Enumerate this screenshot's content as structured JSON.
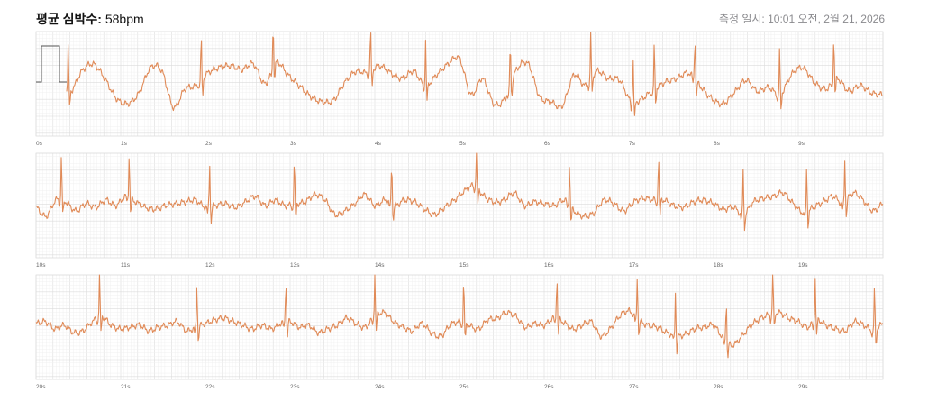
{
  "header": {
    "avg_label": "평균 심박수:",
    "avg_value": "58bpm",
    "measured_label": "측정 일시:",
    "measured_value": "10:01 오전, 2월 21, 2026"
  },
  "chart_data": [
    {
      "type": "line",
      "title": "",
      "series": [
        {
          "values": [
            0.35,
            0.1,
            0.2,
            -0.25,
            0.3,
            0.5,
            0.1,
            -0.45,
            -0.6,
            -0.3,
            0.4,
            0.3,
            -0.7,
            -0.2,
            -0.1,
            0.25,
            0.4,
            0.45,
            0.35,
            0.5,
            -0.05,
            0.55,
            0.2,
            -0.1,
            -0.4,
            -0.55,
            -0.5,
            0.0,
            0.3,
            0.25,
            0.45,
            0.25,
            0.1,
            0.3,
            -0.1,
            0.2,
            0.5,
            0.65,
            -0.35,
            0.1,
            -0.6,
            -0.45,
            0.35,
            0.5,
            -0.4,
            -0.55,
            -0.65,
            0.2,
            -0.1,
            0.3,
            0.1,
            0.05,
            -0.55,
            -0.45,
            -0.2,
            0.0,
            0.1,
            0.25,
            -0.1,
            -0.45,
            -0.6,
            -0.3,
            0.05,
            -0.25,
            -0.15,
            -0.35,
            0.2,
            0.4,
            0.0,
            -0.2,
            0.1,
            -0.25,
            -0.1,
            -0.3,
            -0.35
          ]
        }
      ],
      "x_ticks": [
        "0s",
        "1s",
        "2s",
        "3s",
        "4s",
        "5s",
        "6s",
        "7s",
        "8s",
        "9s"
      ],
      "beats": [
        0.38,
        1.95,
        2.8,
        3.95,
        4.6,
        5.6,
        6.55,
        7.05,
        7.3,
        7.78,
        8.78,
        9.42
      ],
      "calibration_pulse": true
    },
    {
      "type": "line",
      "title": "",
      "series": [
        {
          "values": [
            -0.1,
            -0.35,
            0.1,
            0.05,
            -0.2,
            0.0,
            -0.1,
            0.1,
            -0.05,
            0.2,
            0.05,
            -0.1,
            -0.15,
            -0.05,
            0.0,
            0.05,
            0.1,
            -0.1,
            -0.05,
            0.0,
            -0.1,
            0.05,
            0.2,
            -0.05,
            0.1,
            -0.05,
            0.0,
            0.05,
            0.25,
            0.1,
            -0.3,
            -0.2,
            0.0,
            0.25,
            -0.05,
            0.1,
            -0.05,
            0.1,
            0.05,
            -0.15,
            -0.3,
            -0.1,
            0.1,
            0.35,
            0.5,
            0.2,
            0.05,
            0.1,
            0.3,
            -0.05,
            0.05,
            0.0,
            -0.05,
            0.1,
            -0.2,
            -0.35,
            -0.25,
            0.1,
            0.0,
            -0.2,
            0.05,
            0.15,
            0.1,
            0.1,
            -0.05,
            -0.1,
            0.05,
            0.1,
            0.0,
            -0.15,
            -0.1,
            -0.3,
            0.05,
            0.15,
            0.2,
            0.3,
            0.0,
            -0.25,
            -0.1,
            0.05,
            0.2,
            0.0,
            0.3,
            0.1,
            -0.2,
            0.0
          ]
        }
      ],
      "x_ticks": [
        "10s",
        "11s",
        "12s",
        "13s",
        "14s",
        "15s",
        "16s",
        "17s",
        "18s",
        "19s"
      ],
      "beats": [
        10.3,
        11.1,
        12.05,
        13.05,
        14.2,
        15.2,
        16.3,
        17.35,
        18.35,
        19.1,
        19.55
      ]
    },
    {
      "type": "line",
      "title": "",
      "series": [
        {
          "values": [
            0.05,
            0.1,
            -0.1,
            0.0,
            -0.2,
            -0.15,
            0.1,
            0.25,
            0.0,
            -0.1,
            -0.05,
            0.0,
            -0.15,
            -0.05,
            0.0,
            0.1,
            -0.15,
            -0.05,
            0.05,
            0.15,
            0.2,
            0.1,
            0.0,
            -0.1,
            0.0,
            -0.1,
            0.05,
            0.1,
            -0.05,
            0.0,
            -0.2,
            -0.1,
            0.0,
            0.2,
            0.05,
            -0.05,
            0.25,
            0.35,
            0.1,
            -0.05,
            -0.15,
            0.05,
            -0.2,
            -0.3,
            0.0,
            0.1,
            0.0,
            -0.1,
            0.15,
            0.2,
            0.35,
            0.25,
            -0.05,
            0.05,
            0.0,
            0.2,
            0.1,
            -0.1,
            0.0,
            0.1,
            -0.3,
            -0.1,
            0.25,
            0.4,
            0.15,
            0.0,
            -0.05,
            -0.2,
            -0.3,
            -0.25,
            -0.1,
            -0.05,
            0.0,
            -0.35,
            -0.55,
            -0.3,
            0.0,
            0.2,
            0.3,
            0.35,
            0.2,
            0.1,
            -0.05,
            0.15,
            0.0,
            -0.1,
            -0.15,
            0.1,
            0.0,
            -0.15,
            0.05
          ]
        }
      ],
      "x_ticks": [
        "20s",
        "21s",
        "22s",
        "23s",
        "24s",
        "25s",
        "26s",
        "27s",
        "28s",
        "29s"
      ],
      "beats": [
        20.75,
        21.9,
        22.95,
        24.0,
        25.05,
        26.15,
        27.1,
        27.55,
        28.15,
        28.7,
        29.2,
        29.9
      ]
    }
  ]
}
